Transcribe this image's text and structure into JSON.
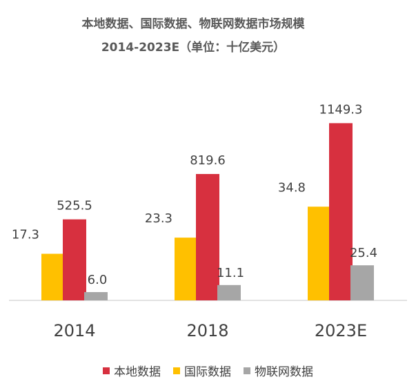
{
  "chart_data": {
    "type": "bar",
    "title": "本地数据、国际数据、物联网数据市场规模",
    "subtitle": "2014-2023E（单位：十亿美元）",
    "categories": [
      "2014",
      "2018",
      "2023E"
    ],
    "series": [
      {
        "name": "国际数据",
        "color": "#FFC000",
        "values": [
          17.3,
          23.3,
          34.8
        ]
      },
      {
        "name": "本地数据",
        "color": "#D7303F",
        "values": [
          525.5,
          819.6,
          1149.3
        ]
      },
      {
        "name": "物联网数据",
        "color": "#A6A6A6",
        "values": [
          6.0,
          11.1,
          25.4
        ]
      }
    ],
    "legend_order": [
      "本地数据",
      "国际数据",
      "物联网数据"
    ],
    "legend_position": "bottom"
  }
}
